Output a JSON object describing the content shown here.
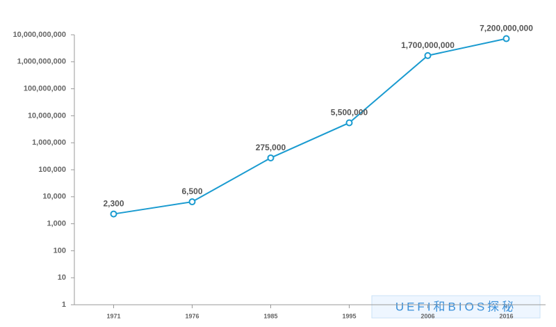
{
  "chart_data": {
    "type": "line",
    "categories": [
      "1971",
      "1976",
      "1985",
      "1995",
      "2006",
      "2016"
    ],
    "series": [
      {
        "color": "#1a9bd0",
        "values": [
          2300,
          6500,
          275000,
          5500000,
          1700000000,
          7200000000
        ],
        "value_labels": [
          "2,300",
          "6,500",
          "275,000",
          "5,500,000",
          "1,700,000,000",
          "7,200,000,000"
        ]
      }
    ],
    "ylim": [
      1,
      10000000000
    ],
    "log_scale": true,
    "yticks": [
      1,
      10,
      100,
      {
        "value": 1000,
        "label": "1,000"
      },
      {
        "value": 10000,
        "label": "10,000"
      },
      {
        "value": 100000,
        "label": "100,000"
      },
      {
        "value": 1000000,
        "label": "1,000,000"
      },
      {
        "value": 10000000,
        "label": "10,000,000"
      },
      {
        "value": 100000000,
        "label": "100,000,000"
      },
      {
        "value": 1000000000,
        "label": "1,000,000,000"
      },
      {
        "value": 10000000000,
        "label": "10,000,000,000"
      }
    ],
    "grid": false
  },
  "watermark": "UEFI和BIOS探秘"
}
